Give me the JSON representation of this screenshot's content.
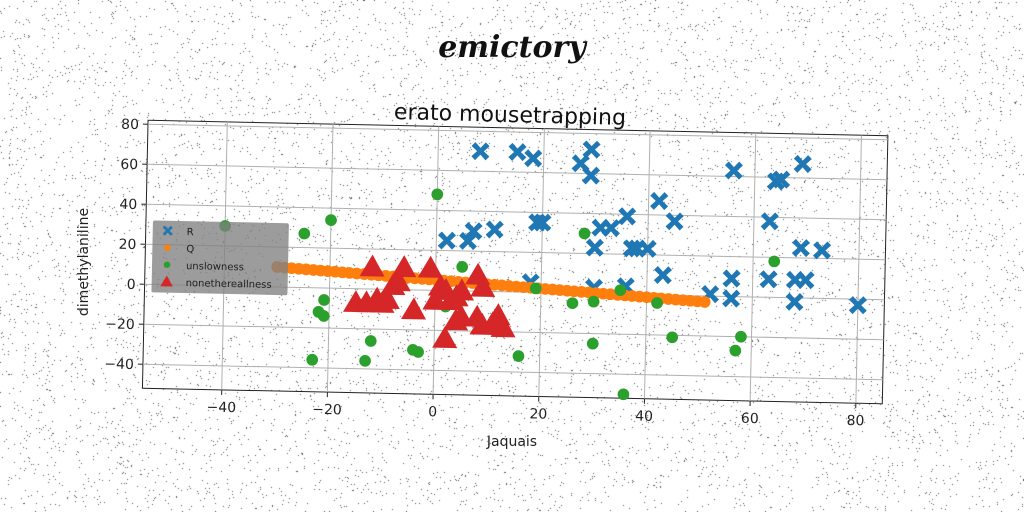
{
  "suptitle": "emictory",
  "chart_data": {
    "type": "scatter",
    "title": "erato mousetrapping",
    "xlabel": "Jaquais",
    "ylabel": "dimethylaniline",
    "xlim": [
      -55,
      85
    ],
    "ylim": [
      -52,
      82
    ],
    "xticks": [
      -40,
      -20,
      0,
      20,
      40,
      60,
      80
    ],
    "yticks": [
      -40,
      -20,
      0,
      20,
      40,
      60,
      80
    ],
    "grid": true,
    "legend_position": "center-left",
    "series": [
      {
        "name": "R",
        "marker": "X",
        "color": "#1f77b4",
        "points": [
          [
            8,
            70
          ],
          [
            15,
            70
          ],
          [
            18,
            67
          ],
          [
            27,
            65
          ],
          [
            29,
            72
          ],
          [
            29,
            59
          ],
          [
            36,
            39
          ],
          [
            31,
            33
          ],
          [
            33,
            33
          ],
          [
            30,
            23
          ],
          [
            37,
            23
          ],
          [
            38,
            23
          ],
          [
            40,
            23
          ],
          [
            42,
            47
          ],
          [
            45,
            37
          ],
          [
            43,
            10
          ],
          [
            36,
            4
          ],
          [
            30,
            3
          ],
          [
            18,
            5
          ],
          [
            19,
            35
          ],
          [
            20,
            35
          ],
          [
            2,
            25
          ],
          [
            7,
            30
          ],
          [
            6,
            25
          ],
          [
            11,
            31
          ],
          [
            56,
            63
          ],
          [
            64,
            58
          ],
          [
            65,
            59
          ],
          [
            69,
            67
          ],
          [
            63,
            38
          ],
          [
            69,
            25
          ],
          [
            73,
            24
          ],
          [
            56,
            9
          ],
          [
            63,
            9
          ],
          [
            68,
            9
          ],
          [
            70,
            9
          ],
          [
            52,
            1
          ],
          [
            56,
            -1
          ],
          [
            68,
            -2
          ],
          [
            80,
            -3
          ]
        ]
      },
      {
        "name": "Q",
        "marker": "o",
        "color": "#ff7f0e",
        "line": {
          "x_from": -30,
          "x_to": 51,
          "y_from": 10,
          "y_to": -3,
          "count": 60
        }
      },
      {
        "name": "unslowness",
        "marker": "o",
        "color": "#2ca02c",
        "points": [
          [
            -25,
            27
          ],
          [
            -20,
            34
          ],
          [
            0,
            48
          ],
          [
            -40,
            30
          ],
          [
            -21,
            -6
          ],
          [
            -22,
            -12
          ],
          [
            -21,
            -14
          ],
          [
            -12,
            -26
          ],
          [
            -13,
            -36
          ],
          [
            -23,
            -36
          ],
          [
            -4,
            -30
          ],
          [
            -3,
            -31
          ],
          [
            5,
            12
          ],
          [
            2,
            -8
          ],
          [
            12,
            -15
          ],
          [
            16,
            -32
          ],
          [
            19,
            2
          ],
          [
            26,
            -5
          ],
          [
            28,
            30
          ],
          [
            30,
            -4
          ],
          [
            30,
            -25
          ],
          [
            35,
            2
          ],
          [
            36,
            -50
          ],
          [
            42,
            -4
          ],
          [
            45,
            -21
          ],
          [
            57,
            -27
          ],
          [
            58,
            -20
          ],
          [
            64,
            18
          ]
        ]
      },
      {
        "name": "nonethereallness",
        "marker": "^",
        "color": "#d62728",
        "points": [
          [
            -12,
            11
          ],
          [
            -6,
            11
          ],
          [
            -1,
            11
          ],
          [
            -15,
            -7
          ],
          [
            -13,
            -7
          ],
          [
            -10,
            -7
          ],
          [
            -11,
            -5
          ],
          [
            -9,
            -5
          ],
          [
            -7,
            4
          ],
          [
            -8,
            2
          ],
          [
            -4,
            -10
          ],
          [
            0,
            -5
          ],
          [
            1,
            2
          ],
          [
            2,
            0
          ],
          [
            3,
            -5
          ],
          [
            4,
            -3
          ],
          [
            5,
            0
          ],
          [
            5,
            -13
          ],
          [
            4,
            -15
          ],
          [
            2,
            -24
          ],
          [
            8,
            8
          ],
          [
            9,
            2
          ],
          [
            8,
            -13
          ],
          [
            9,
            -17
          ],
          [
            11,
            -16
          ],
          [
            12,
            -12
          ],
          [
            13,
            -18
          ]
        ]
      }
    ]
  }
}
